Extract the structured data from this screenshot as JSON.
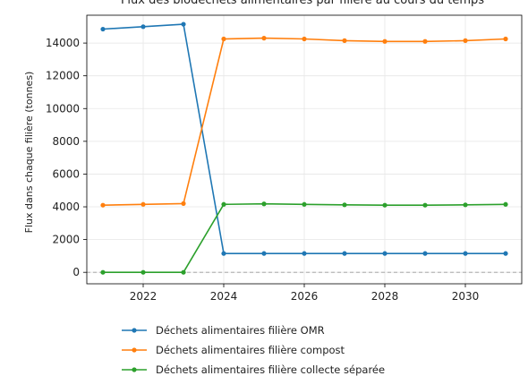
{
  "chart_data": {
    "type": "line",
    "title": "Flux des biodéchets alimentaires par filière au cours du temps",
    "xlabel": "",
    "ylabel": "Flux dans chaque filière (tonnes)",
    "xlim": [
      2020.6,
      2031.4
    ],
    "ylim": [
      -700,
      15700
    ],
    "x": [
      2021,
      2022,
      2023,
      2024,
      2025,
      2026,
      2027,
      2028,
      2029,
      2030,
      2031
    ],
    "xticks": [
      2022,
      2024,
      2026,
      2028,
      2030
    ],
    "yticks": [
      0,
      2000,
      4000,
      6000,
      8000,
      10000,
      12000,
      14000
    ],
    "grid": true,
    "zero_line": true,
    "legend_position": "below",
    "series": [
      {
        "name": "Déchets alimentaires filière OMR",
        "color": "#1f77b4",
        "values": [
          14850,
          15000,
          15150,
          1150,
          1150,
          1150,
          1150,
          1150,
          1150,
          1150,
          1150
        ]
      },
      {
        "name": "Déchets alimentaires filière compost",
        "color": "#ff7f0e",
        "values": [
          4100,
          4150,
          4200,
          14250,
          14300,
          14250,
          14150,
          14100,
          14100,
          14150,
          14250
        ]
      },
      {
        "name": "Déchets alimentaires filière collecte séparée",
        "color": "#2ca02c",
        "values": [
          0,
          0,
          0,
          4150,
          4180,
          4150,
          4120,
          4100,
          4100,
          4120,
          4150
        ]
      }
    ]
  }
}
